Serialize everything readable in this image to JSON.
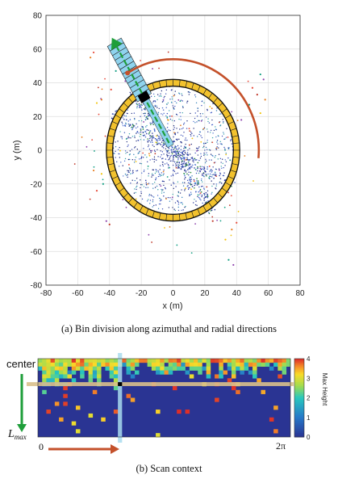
{
  "chart_data": [
    {
      "type": "scatter",
      "xlabel": "x (m)",
      "ylabel": "y (m)",
      "xlim": [
        -80,
        80
      ],
      "ylim": [
        -80,
        80
      ],
      "xticks": [
        -80,
        -60,
        -40,
        -20,
        0,
        20,
        40,
        60,
        80
      ],
      "yticks": [
        -80,
        -60,
        -40,
        -20,
        0,
        20,
        40,
        60,
        80
      ],
      "grid": true,
      "ring": {
        "inner_radius": 38,
        "outer_radius": 42,
        "segments": 60
      },
      "radial_bin": {
        "angle_deg": 120,
        "start_radius": 0,
        "end_radius": 74,
        "cells": 12,
        "highlight_radius": 30
      },
      "azimuth_arc": {
        "radius": 54,
        "from_deg": 122,
        "to_deg": -5
      }
    },
    {
      "type": "heatmap",
      "colorbar_label": "Max Height",
      "colorbar_ticks": [
        0,
        1,
        2,
        3,
        4
      ],
      "vmin": 0,
      "vmax": 4
    }
  ],
  "figure_a": {
    "caption": "(a)  Bin division along azimuthal and radial directions"
  },
  "figure_b": {
    "caption": "(b)  Scan context",
    "label_center": "center",
    "label_lmax_main": "L",
    "label_lmax_sub": "max",
    "label_zero": "0",
    "label_twopi": "2π"
  },
  "colors": {
    "ring_fill": "#f2c22e",
    "bin_fill": "#8fd3ee",
    "arrow_green": "#1e9e3a",
    "arrow_red": "#c4512b",
    "heatmap_bg": "#2a3493",
    "highlight_band": "#d9c08c",
    "highlight_col": "#a9dcef"
  }
}
